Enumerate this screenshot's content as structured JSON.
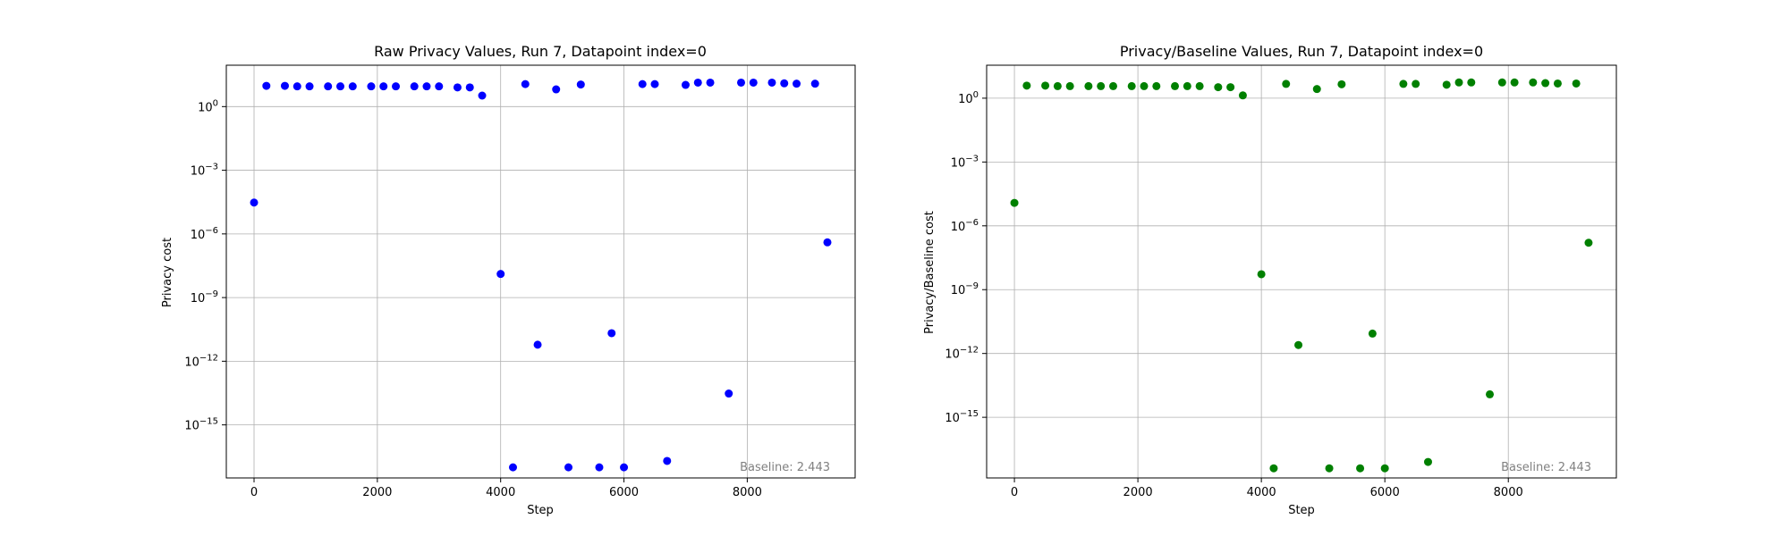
{
  "figure": {
    "panels": [
      "Raw Privacy Values",
      "Privacy/Baseline Values"
    ]
  },
  "chart_data": [
    {
      "type": "scatter",
      "title": "Raw Privacy Values, Run 7, Datapoint index=0",
      "xlabel": "Step",
      "ylabel": "Privacy cost",
      "yscale": "log",
      "xlim": [
        -450,
        9750
      ],
      "ylim_log10": [
        -17.5,
        1.95
      ],
      "grid": true,
      "marker_color": "#0000ff",
      "x_ticks": [
        0,
        2000,
        4000,
        6000,
        8000
      ],
      "x_tick_labels": [
        "0",
        "2000",
        "4000",
        "6000",
        "8000"
      ],
      "y_ticks_log10": [
        0,
        -3,
        -6,
        -9,
        -12,
        -15
      ],
      "y_tick_labels": [
        {
          "base": "10",
          "exp": "0"
        },
        {
          "base": "10",
          "exp": "−3"
        },
        {
          "base": "10",
          "exp": "−6"
        },
        {
          "base": "10",
          "exp": "−9"
        },
        {
          "base": "10",
          "exp": "−12"
        },
        {
          "base": "10",
          "exp": "−15"
        }
      ],
      "annotation": "Baseline: 2.443",
      "series": [
        {
          "name": "privacy cost",
          "x": [
            0,
            200,
            500,
            700,
            900,
            1200,
            1400,
            1600,
            1900,
            2100,
            2300,
            2600,
            2800,
            3000,
            3300,
            3500,
            3700,
            4000,
            4200,
            4400,
            4600,
            4900,
            5100,
            5300,
            5600,
            5800,
            6000,
            6300,
            6500,
            6700,
            7000,
            7200,
            7400,
            7700,
            7900,
            8100,
            8400,
            8600,
            8800,
            9100,
            9300
          ],
          "y": [
            3e-05,
            9.5,
            9.5,
            9.0,
            9.0,
            9.0,
            9.0,
            9.0,
            9.0,
            9.0,
            9.0,
            9.0,
            9.0,
            9.0,
            8.0,
            8.0,
            3.3,
            1.3e-08,
            1e-17,
            11.5,
            6e-12,
            6.5,
            1e-17,
            11.0,
            1e-17,
            2.1e-11,
            1e-17,
            11.5,
            11.5,
            2e-17,
            10.5,
            13.5,
            13.5,
            3e-14,
            13.5,
            13.5,
            13.5,
            12.5,
            12.0,
            12.0,
            4e-07
          ]
        }
      ]
    },
    {
      "type": "scatter",
      "title": "Privacy/Baseline Values, Run 7, Datapoint index=0",
      "xlabel": "Step",
      "ylabel": "Privacy/Baseline cost",
      "yscale": "log",
      "xlim": [
        -450,
        9750
      ],
      "ylim_log10": [
        -17.85,
        1.55
      ],
      "grid": true,
      "marker_color": "#008000",
      "x_ticks": [
        0,
        2000,
        4000,
        6000,
        8000
      ],
      "x_tick_labels": [
        "0",
        "2000",
        "4000",
        "6000",
        "8000"
      ],
      "y_ticks_log10": [
        0,
        -3,
        -6,
        -9,
        -12,
        -15
      ],
      "y_tick_labels": [
        {
          "base": "10",
          "exp": "0"
        },
        {
          "base": "10",
          "exp": "−3"
        },
        {
          "base": "10",
          "exp": "−6"
        },
        {
          "base": "10",
          "exp": "−9"
        },
        {
          "base": "10",
          "exp": "−12"
        },
        {
          "base": "10",
          "exp": "−15"
        }
      ],
      "annotation": "Baseline: 2.443",
      "series": [
        {
          "name": "privacy / baseline",
          "x": [
            0,
            200,
            500,
            700,
            900,
            1200,
            1400,
            1600,
            1900,
            2100,
            2300,
            2600,
            2800,
            3000,
            3300,
            3500,
            3700,
            4000,
            4200,
            4400,
            4600,
            4900,
            5100,
            5300,
            5600,
            5800,
            6000,
            6300,
            6500,
            6700,
            7000,
            7200,
            7400,
            7700,
            7900,
            8100,
            8400,
            8600,
            8800,
            9100,
            9300
          ],
          "y": [
            1.2e-05,
            3.9,
            3.9,
            3.7,
            3.7,
            3.7,
            3.7,
            3.7,
            3.7,
            3.7,
            3.7,
            3.7,
            3.7,
            3.7,
            3.3,
            3.3,
            1.35,
            5.3e-09,
            4e-18,
            4.7,
            2.5e-12,
            2.7,
            4e-18,
            4.5,
            4e-18,
            8.6e-12,
            4e-18,
            4.7,
            4.7,
            8e-18,
            4.3,
            5.5,
            5.5,
            1.2e-14,
            5.5,
            5.5,
            5.5,
            5.1,
            4.9,
            4.9,
            1.6e-07
          ]
        }
      ]
    }
  ]
}
